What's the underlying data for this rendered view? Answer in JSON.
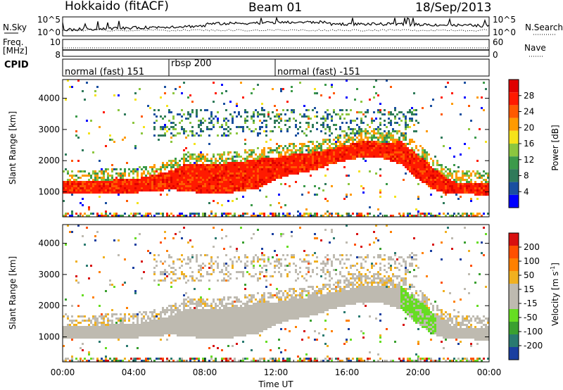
{
  "header": {
    "station": "Hokkaido (fitACF)",
    "beam": "Beam 01",
    "date": "18/Sep/2013"
  },
  "top_panel": {
    "left_label": "N.Sky",
    "right_label": "N.Search",
    "left_ticks": [
      "10^5",
      "10^0"
    ],
    "right_ticks": [
      "10^5",
      "10^0"
    ]
  },
  "freq_panel": {
    "left_label_1": "Freq.",
    "left_label_2": "[MHz]",
    "left_ticks": [
      "10",
      "8"
    ],
    "right_label": "Nave",
    "right_ticks": [
      "60",
      "0"
    ]
  },
  "cpid_panel": {
    "label": "CPID",
    "segments": [
      {
        "label": "normal (fast) 151",
        "start_hour": 0
      },
      {
        "label": "rbsp 200",
        "start_hour": 6
      },
      {
        "label": "normal (fast) -151",
        "start_hour": 12
      }
    ]
  },
  "colors": {
    "power_scale": [
      "#0000ff",
      "#1a4fa0",
      "#2f7a5a",
      "#3c9a4a",
      "#8cc63f",
      "#f5e31a",
      "#ff9a00",
      "#ff5a00",
      "#ff1a00",
      "#e00000"
    ],
    "velocity_scale": [
      "#d81010",
      "#ff5000",
      "#ff8000",
      "#f0b020",
      "#bebab0",
      "#bebab0",
      "#66dd22",
      "#3aa030",
      "#2a7a70",
      "#1a3fa0"
    ]
  },
  "chart_data": [
    {
      "type": "heatmap",
      "ylabel": "Slant Range [km]",
      "x_ticks": [
        "00:00",
        "04:00",
        "08:00",
        "12:00",
        "16:00",
        "20:00",
        "00:00"
      ],
      "xlim_hours": [
        0,
        24
      ],
      "ylim": [
        200,
        4600
      ],
      "y_ticks": [
        1000,
        2000,
        3000,
        4000
      ],
      "colorbar": {
        "label": "Power [dB]",
        "ticks": [
          4,
          8,
          12,
          16,
          20,
          24,
          28
        ]
      },
      "main_band_km": {
        "hours": [
          0,
          2,
          4,
          6,
          7,
          8,
          9,
          10,
          11,
          12,
          13,
          14,
          15,
          16,
          17,
          18,
          19,
          20,
          21,
          22,
          23,
          24
        ],
        "lower": [
          950,
          950,
          1000,
          1100,
          1050,
          950,
          950,
          1050,
          1150,
          1450,
          1600,
          1700,
          1900,
          2050,
          2150,
          2100,
          1900,
          1400,
          1050,
          950,
          950,
          900
        ],
        "upper": [
          1400,
          1400,
          1450,
          1700,
          1950,
          1900,
          1950,
          2000,
          2100,
          2150,
          2250,
          2300,
          2400,
          2550,
          2700,
          2600,
          2650,
          2200,
          1700,
          1350,
          1350,
          1350
        ]
      }
    },
    {
      "type": "heatmap",
      "ylabel": "Slant Range [km]",
      "xlabel": "Time UT",
      "x_ticks": [
        "00:00",
        "04:00",
        "08:00",
        "12:00",
        "16:00",
        "20:00",
        "00:00"
      ],
      "xlim_hours": [
        0,
        24
      ],
      "ylim": [
        200,
        4600
      ],
      "y_ticks": [
        1000,
        2000,
        3000,
        4000
      ],
      "colorbar": {
        "label": "Velocity [m s^-1]",
        "label_main": "Velocity [m s",
        "label_exp": "-1",
        "ticks": [
          200,
          100,
          50,
          15,
          -15,
          -50,
          -100,
          -200
        ]
      }
    }
  ]
}
